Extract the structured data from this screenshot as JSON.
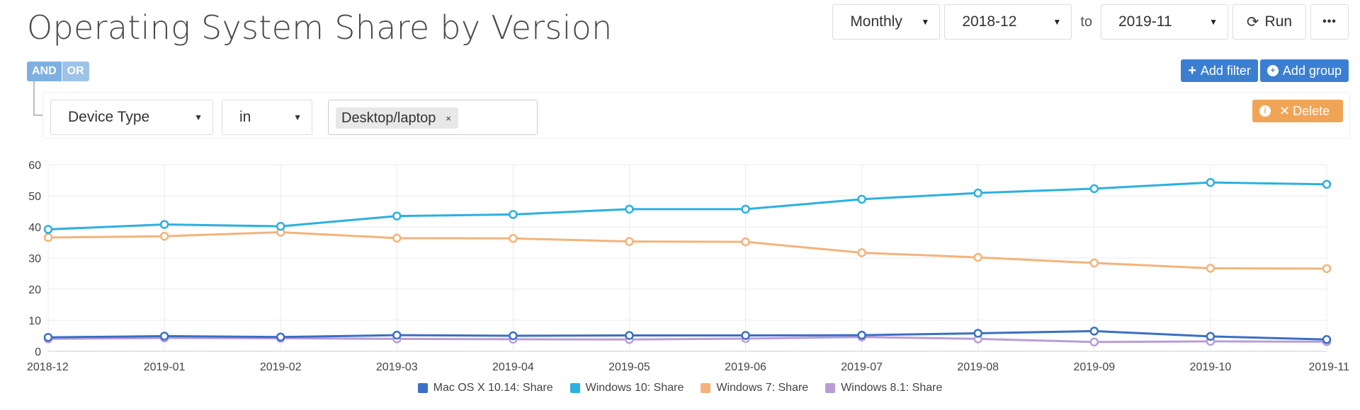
{
  "header": {
    "title": "Operating System Share by Version"
  },
  "toolbar": {
    "period": "Monthly",
    "date_from": "2018-12",
    "to_label": "to",
    "date_to": "2019-11",
    "run_label": "Run",
    "more_label": "•••"
  },
  "logic": {
    "and_label": "AND",
    "or_label": "OR"
  },
  "filter": {
    "field": "Device Type",
    "operator": "in",
    "tag": "Desktop/laptop",
    "tag_remove": "×"
  },
  "actions": {
    "add_filter": "Add filter",
    "add_group": "Add group",
    "delete": "Delete"
  },
  "chart_data": {
    "type": "line",
    "categories": [
      "2018-12",
      "2019-01",
      "2019-02",
      "2019-03",
      "2019-04",
      "2019-05",
      "2019-06",
      "2019-07",
      "2019-08",
      "2019-09",
      "2019-10",
      "2019-11"
    ],
    "series": [
      {
        "name": "Mac OS X 10.14: Share",
        "color": "#3a6fc4",
        "values": [
          4.5,
          4.9,
          4.6,
          5.2,
          5.0,
          5.1,
          5.1,
          5.2,
          5.8,
          6.5,
          4.8,
          3.8
        ]
      },
      {
        "name": "Windows 10: Share",
        "color": "#2bb0e0",
        "values": [
          39.2,
          40.8,
          40.2,
          43.5,
          44.0,
          45.7,
          45.7,
          48.9,
          50.9,
          52.3,
          54.3,
          53.7
        ]
      },
      {
        "name": "Windows 7: Share",
        "color": "#f3b37a",
        "values": [
          36.6,
          37.0,
          38.3,
          36.4,
          36.3,
          35.3,
          35.2,
          31.7,
          30.2,
          28.4,
          26.7,
          26.6
        ]
      },
      {
        "name": "Windows 8.1: Share",
        "color": "#b99dd6",
        "values": [
          4.0,
          4.3,
          4.2,
          4.0,
          3.9,
          3.8,
          4.1,
          4.6,
          4.0,
          3.0,
          3.2,
          3.1
        ]
      }
    ],
    "yticks": [
      0,
      10,
      20,
      30,
      40,
      50,
      60
    ],
    "ylim": [
      0,
      60
    ],
    "grid": true,
    "legend_position": "bottom"
  }
}
